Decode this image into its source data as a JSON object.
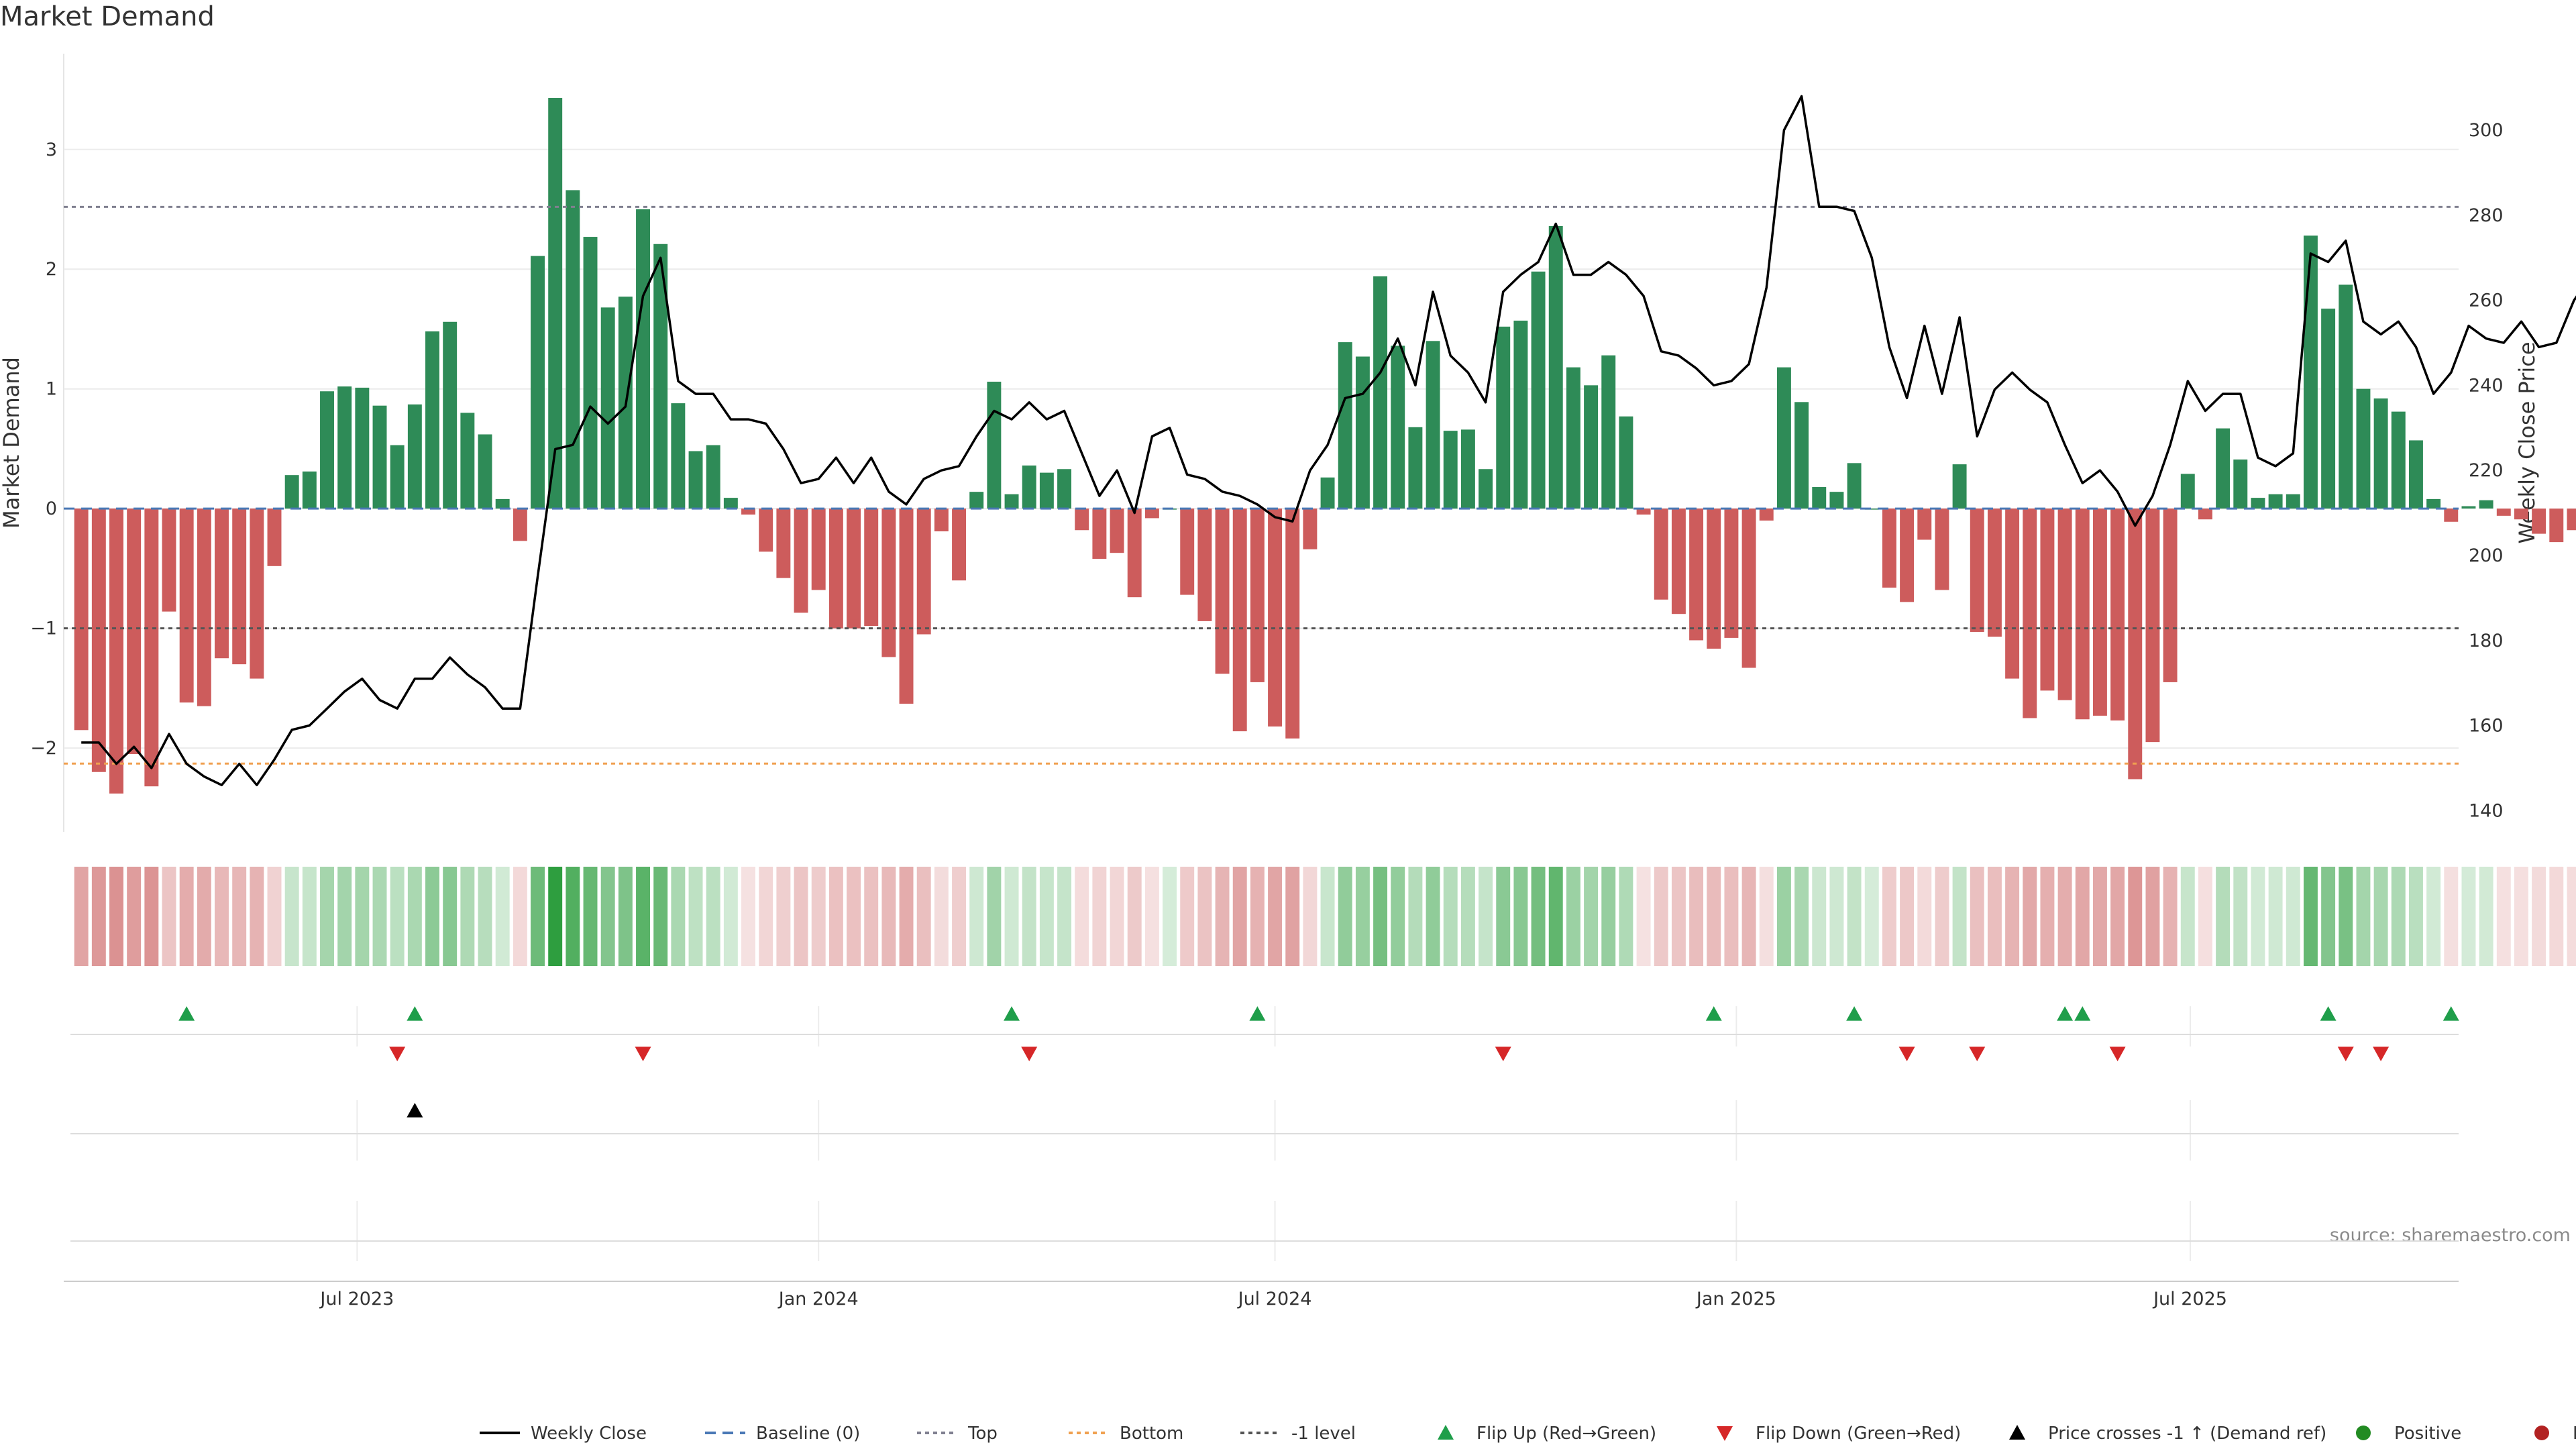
{
  "chart_data": {
    "type": "bar",
    "title": "Market Demand",
    "ylabel": "Market Demand",
    "y2label": "Weekly Close Price",
    "ylim": [
      -2.7,
      3.8
    ],
    "y2lim": [
      135,
      318
    ],
    "x_start": "2023-03-06",
    "x_end": "2025-10-16",
    "y_ticks": [
      -2,
      -1,
      0,
      1,
      2,
      3
    ],
    "y_tick_labels": [
      "−2",
      "−1",
      "0",
      "1",
      "2",
      "3"
    ],
    "y2_ticks": [
      140,
      160,
      180,
      200,
      220,
      240,
      260,
      280,
      300
    ],
    "y2_tick_labels": [
      "140",
      "160",
      "180",
      "200",
      "220",
      "240",
      "260",
      "280",
      "300"
    ],
    "x_ticks": [
      "2023-07-01",
      "2024-01-01",
      "2024-07-01",
      "2025-01-01",
      "2025-07-01"
    ],
    "x_tick_labels": [
      "Jul 2023",
      "Jan 2024",
      "Jul 2024",
      "Jan 2025",
      "Jul 2025"
    ],
    "reference_lines": {
      "baseline": 0,
      "top": 2.52,
      "bottom": -2.13,
      "minus_one": -1
    },
    "demand": [
      -1.85,
      -2.2,
      -2.38,
      -2.05,
      -2.32,
      -0.86,
      -1.62,
      -1.65,
      -1.25,
      -1.3,
      -1.42,
      -0.48,
      0.28,
      0.31,
      0.98,
      1.02,
      1.01,
      0.86,
      0.53,
      0.87,
      1.48,
      1.56,
      0.8,
      0.62,
      0.08,
      -0.27,
      2.11,
      3.43,
      2.66,
      2.27,
      1.68,
      1.77,
      2.5,
      2.21,
      0.88,
      0.48,
      0.53,
      0.09,
      -0.05,
      -0.36,
      -0.58,
      -0.87,
      -0.68,
      -1.0,
      -1.0,
      -0.98,
      -1.24,
      -1.63,
      -1.05,
      -0.19,
      -0.6,
      0.14,
      1.06,
      0.12,
      0.36,
      0.3,
      0.33,
      -0.18,
      -0.42,
      -0.37,
      -0.74,
      -0.08,
      0.0,
      -0.72,
      -0.94,
      -1.38,
      -1.86,
      -1.45,
      -1.82,
      -1.92,
      -0.34,
      0.26,
      1.39,
      1.27,
      1.94,
      1.36,
      0.68,
      1.4,
      0.65,
      0.66,
      0.33,
      1.52,
      1.57,
      1.98,
      2.36,
      1.18,
      1.03,
      1.28,
      0.77,
      -0.05,
      -0.76,
      -0.88,
      -1.1,
      -1.17,
      -1.08,
      -1.33,
      -0.1,
      1.18,
      0.89,
      0.18,
      0.14,
      0.38,
      0.0,
      -0.66,
      -0.78,
      -0.26,
      -0.68,
      0.37,
      -1.03,
      -1.07,
      -1.42,
      -1.75,
      -1.52,
      -1.6,
      -1.76,
      -1.73,
      -1.77,
      -2.26,
      -1.95,
      -1.45,
      0.29,
      -0.09,
      0.67,
      0.41,
      0.09,
      0.12,
      0.12,
      2.28,
      1.67,
      1.87,
      1.0,
      0.92,
      0.81,
      0.57,
      0.08,
      -0.11,
      0.02,
      0.07,
      -0.06,
      -0.09,
      -0.21,
      -0.28,
      -0.18,
      0.31
    ],
    "price": [
      156,
      156,
      151,
      155,
      150,
      158,
      151,
      148,
      146,
      151,
      146,
      152,
      159,
      160,
      164,
      168,
      171,
      166,
      164,
      171,
      171,
      176,
      172,
      169,
      164,
      164,
      195,
      225,
      226,
      235,
      231,
      235,
      261,
      270,
      241,
      238,
      238,
      232,
      232,
      231,
      225,
      217,
      218,
      223,
      217,
      223,
      215,
      212,
      218,
      220,
      221,
      228,
      234,
      232,
      236,
      232,
      234,
      224,
      214,
      220,
      210,
      228,
      230,
      219,
      218,
      215,
      214,
      212,
      209,
      208,
      220,
      226,
      237,
      238,
      243,
      251,
      240,
      262,
      247,
      243,
      236,
      262,
      266,
      269,
      278,
      266,
      266,
      269,
      266,
      261,
      248,
      247,
      244,
      240,
      241,
      245,
      263,
      300,
      308,
      282,
      282,
      281,
      270,
      249,
      237,
      254,
      238,
      256,
      228,
      239,
      243,
      239,
      236,
      226,
      217,
      220,
      215,
      207,
      214,
      226,
      241,
      234,
      238,
      238,
      223,
      221,
      224,
      271,
      269,
      274,
      255,
      252,
      255,
      249,
      238,
      243,
      254,
      251,
      250,
      255,
      249,
      250,
      260,
      266,
      270
    ],
    "state_colors": {
      "dark_green": "#2e8b57",
      "dark_red": "#cd5c5c",
      "positive_marker": "#228b22",
      "negative_marker": "#b22222",
      "heat_pos_max": "#2e9e3f",
      "heat_neg_max": "#d07070",
      "flip_up": "#1f9e4a",
      "flip_down": "#d62728",
      "cross": "#000000",
      "price_line": "#000000",
      "top_line": "#808090",
      "bottom_line": "#f0a050",
      "minus_one_line": "#555555",
      "baseline_line": "#4a78b5",
      "grid": "#ececec"
    },
    "flip_up_dates": [
      "2023-04-24",
      "2023-07-24",
      "2024-03-18",
      "2024-06-24",
      "2024-12-23",
      "2025-02-17",
      "2025-05-12",
      "2025-05-19",
      "2025-08-25",
      "2025-10-13"
    ],
    "flip_down_dates": [
      "2023-07-17",
      "2023-10-23",
      "2024-03-25",
      "2024-09-30",
      "2025-03-10",
      "2025-04-07",
      "2025-06-02",
      "2025-09-01",
      "2025-09-15"
    ],
    "cross_dates": [
      "2023-07-24"
    ],
    "source": "source: sharemaestro.com",
    "legend": [
      {
        "key": "price",
        "label": "Weekly Close"
      },
      {
        "key": "baseline",
        "label": "Baseline (0)"
      },
      {
        "key": "top",
        "label": "Top"
      },
      {
        "key": "bottom",
        "label": "Bottom"
      },
      {
        "key": "minus_one",
        "label": "-1 level"
      },
      {
        "key": "flip_up",
        "label": "Flip Up (Red→Green)"
      },
      {
        "key": "flip_down",
        "label": "Flip Down (Green→Red)"
      },
      {
        "key": "cross",
        "label": "Price crosses -1 ↑ (Demand ref)"
      },
      {
        "key": "positive",
        "label": "Positive"
      },
      {
        "key": "negative",
        "label": "Negative"
      }
    ]
  }
}
